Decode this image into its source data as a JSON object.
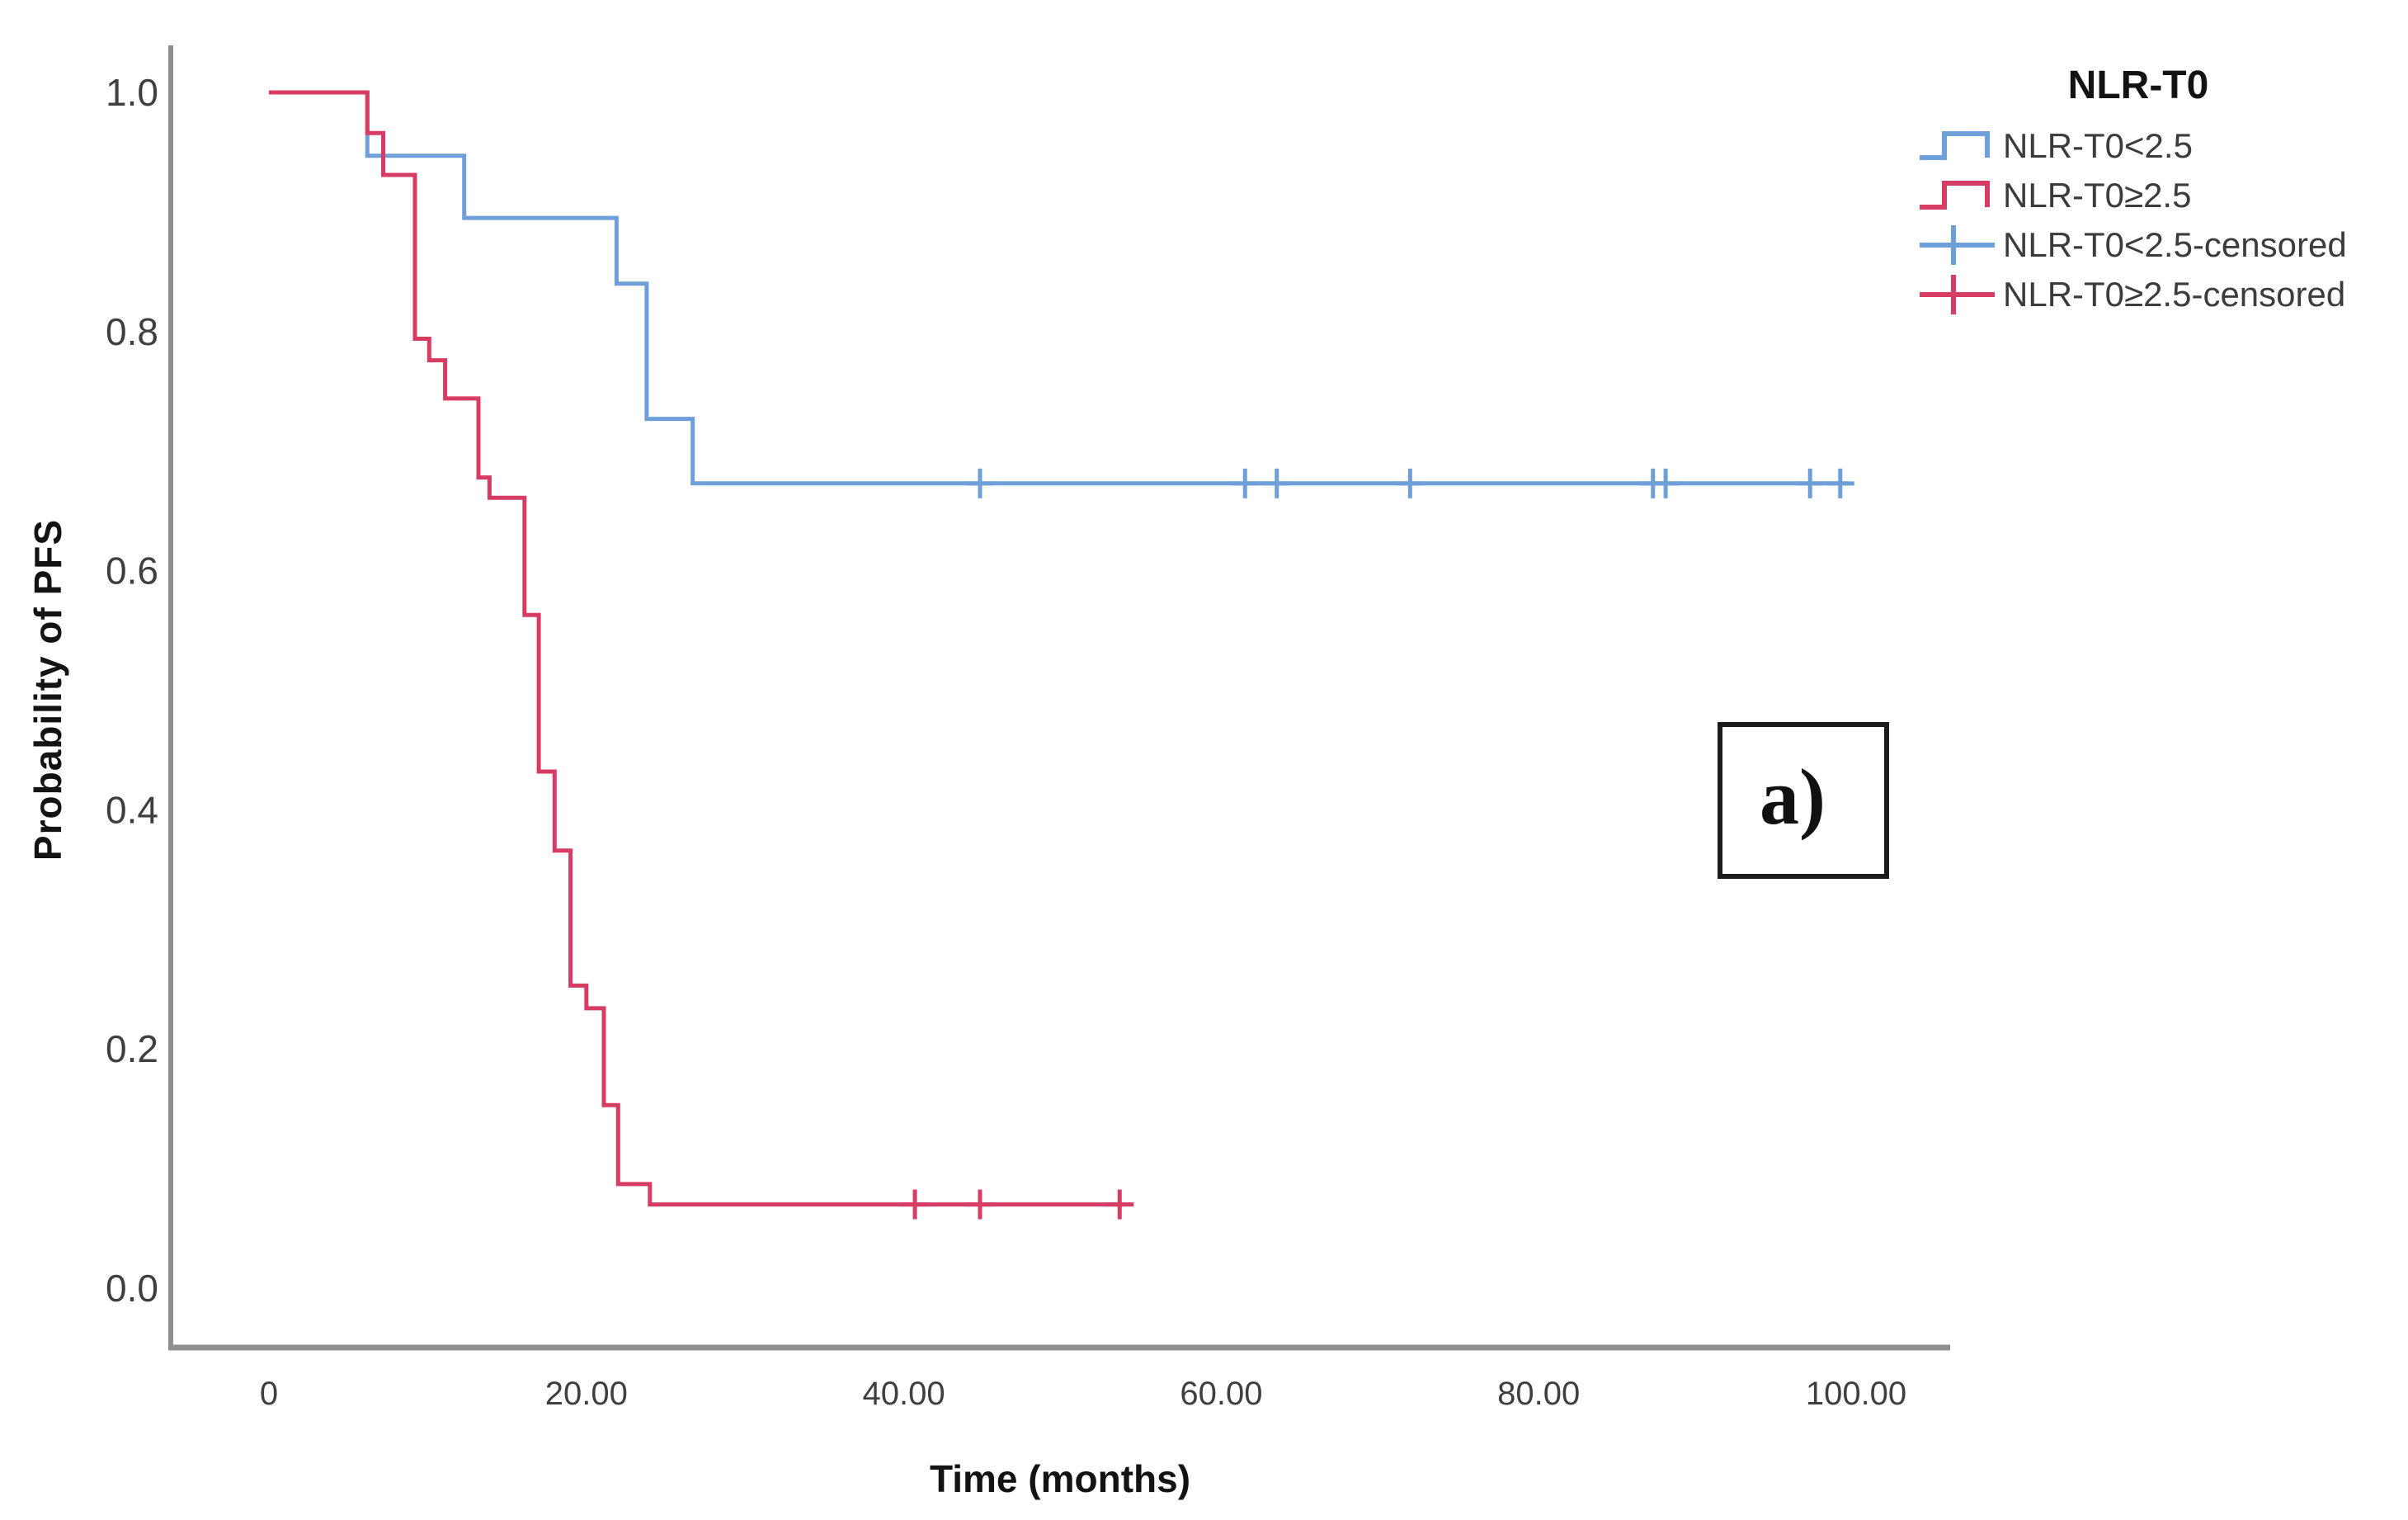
{
  "figure": {
    "background": "#ffffff",
    "annotation_label": "a)"
  },
  "axes": {
    "x_title": "Time (months)",
    "y_title": "Probability of PFS",
    "axis_color": "#8f8f8f",
    "tick_label_color": "#3f3f3f",
    "x_ticks": [
      {
        "t": 0,
        "label": "0"
      },
      {
        "t": 20,
        "label": "20.00"
      },
      {
        "t": 40,
        "label": "40.00"
      },
      {
        "t": 60,
        "label": "60.00"
      },
      {
        "t": 80,
        "label": "80.00"
      },
      {
        "t": 100,
        "label": "100.00"
      }
    ],
    "y_ticks": [
      {
        "v": 1.0,
        "label": "1.0"
      },
      {
        "v": 0.8,
        "label": "0.8"
      },
      {
        "v": 0.6,
        "label": "0.6"
      },
      {
        "v": 0.4,
        "label": "0.4"
      },
      {
        "v": 0.2,
        "label": "0.2"
      },
      {
        "v": 0.0,
        "label": "0.0"
      }
    ]
  },
  "legend": {
    "title": "NLR-T0",
    "items": [
      {
        "label": "NLR-T0<2.5",
        "marker": "step",
        "series": 0
      },
      {
        "label": "NLR-T0≥2.5",
        "marker": "step",
        "series": 1
      },
      {
        "label": "NLR-T0<2.5-censored",
        "marker": "plus",
        "series": 0
      },
      {
        "label": "NLR-T0≥2.5-censored",
        "marker": "plus",
        "series": 1
      }
    ]
  },
  "chart_data": {
    "type": "line",
    "subtype": "kaplan_meier_step",
    "title": "",
    "xlabel": "Time (months)",
    "ylabel": "Probability of PFS",
    "xlim": [
      0,
      100
    ],
    "ylim": [
      0.0,
      1.0
    ],
    "grid": false,
    "legend_position": "top-right",
    "x_tick_values": [
      0,
      20,
      40,
      60,
      80,
      100
    ],
    "y_tick_values": [
      0.0,
      0.2,
      0.4,
      0.6,
      0.8,
      1.0
    ],
    "series": [
      {
        "name": "NLR-T0<2.5",
        "color": "#6f9fd8",
        "start": {
          "time": 0,
          "value": 1.0
        },
        "steps": [
          [
            6.2,
            0.947
          ],
          [
            12.3,
            0.895
          ],
          [
            21.9,
            0.84
          ],
          [
            23.8,
            0.727
          ],
          [
            26.7,
            0.673
          ]
        ],
        "end_time": 99.5,
        "censored_value": 0.673,
        "censored_times": [
          44.8,
          61.5,
          63.5,
          71.9,
          87.2,
          88.0,
          97.1,
          99.0
        ]
      },
      {
        "name": "NLR-T0≥2.5",
        "color": "#d73c64",
        "start": {
          "time": 0,
          "value": 1.0
        },
        "steps": [
          [
            6.2,
            0.966
          ],
          [
            7.2,
            0.931
          ],
          [
            9.2,
            0.794
          ],
          [
            10.1,
            0.776
          ],
          [
            11.1,
            0.744
          ],
          [
            13.2,
            0.678
          ],
          [
            13.9,
            0.661
          ],
          [
            16.1,
            0.563
          ],
          [
            17.0,
            0.432
          ],
          [
            18.0,
            0.366
          ],
          [
            19.0,
            0.253
          ],
          [
            20.0,
            0.234
          ],
          [
            21.1,
            0.153
          ],
          [
            22.0,
            0.087
          ],
          [
            24.0,
            0.07
          ]
        ],
        "end_time": 54.0,
        "censored_value": 0.07,
        "censored_times": [
          40.7,
          44.8,
          53.6
        ]
      }
    ]
  }
}
